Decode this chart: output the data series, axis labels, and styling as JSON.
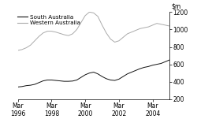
{
  "ylim": [
    200,
    1200
  ],
  "yticks": [
    200,
    400,
    600,
    800,
    1000,
    1200
  ],
  "xtick_labels": [
    "Mar\n1996",
    "Mar\n1998",
    "Mar\n2000",
    "Mar\n2002",
    "Mar\n2004"
  ],
  "xtick_positions": [
    0,
    2,
    4,
    6,
    8
  ],
  "legend_labels": [
    "South Australia",
    "Western Australia"
  ],
  "sa_color": "#111111",
  "wa_color": "#aaaaaa",
  "background_color": "#ffffff",
  "sa_data": {
    "x": [
      0,
      0.25,
      0.5,
      0.75,
      1.0,
      1.25,
      1.5,
      1.75,
      2.0,
      2.25,
      2.5,
      2.75,
      3.0,
      3.25,
      3.5,
      3.75,
      4.0,
      4.25,
      4.5,
      4.75,
      5.0,
      5.25,
      5.5,
      5.75,
      6.0,
      6.25,
      6.5,
      6.75,
      7.0,
      7.25,
      7.5,
      7.75,
      8.0,
      8.25,
      8.5,
      8.75,
      9.0
    ],
    "y": [
      340,
      345,
      355,
      360,
      370,
      390,
      410,
      420,
      420,
      415,
      410,
      405,
      405,
      408,
      420,
      450,
      480,
      500,
      510,
      490,
      460,
      435,
      420,
      415,
      430,
      460,
      490,
      510,
      530,
      550,
      565,
      575,
      590,
      600,
      610,
      630,
      650
    ]
  },
  "wa_data": {
    "x": [
      0,
      0.25,
      0.5,
      0.75,
      1.0,
      1.25,
      1.5,
      1.75,
      2.0,
      2.25,
      2.5,
      2.75,
      3.0,
      3.25,
      3.5,
      3.75,
      4.0,
      4.25,
      4.5,
      4.75,
      5.0,
      5.25,
      5.5,
      5.75,
      6.0,
      6.25,
      6.5,
      6.75,
      7.0,
      7.25,
      7.5,
      7.75,
      8.0,
      8.25,
      8.5,
      8.75,
      9.0
    ],
    "y": [
      760,
      770,
      790,
      820,
      870,
      920,
      960,
      980,
      980,
      970,
      955,
      940,
      930,
      950,
      1000,
      1080,
      1160,
      1200,
      1190,
      1150,
      1050,
      960,
      890,
      855,
      870,
      910,
      950,
      970,
      990,
      1010,
      1020,
      1030,
      1050,
      1070,
      1060,
      1050,
      1040
    ]
  }
}
